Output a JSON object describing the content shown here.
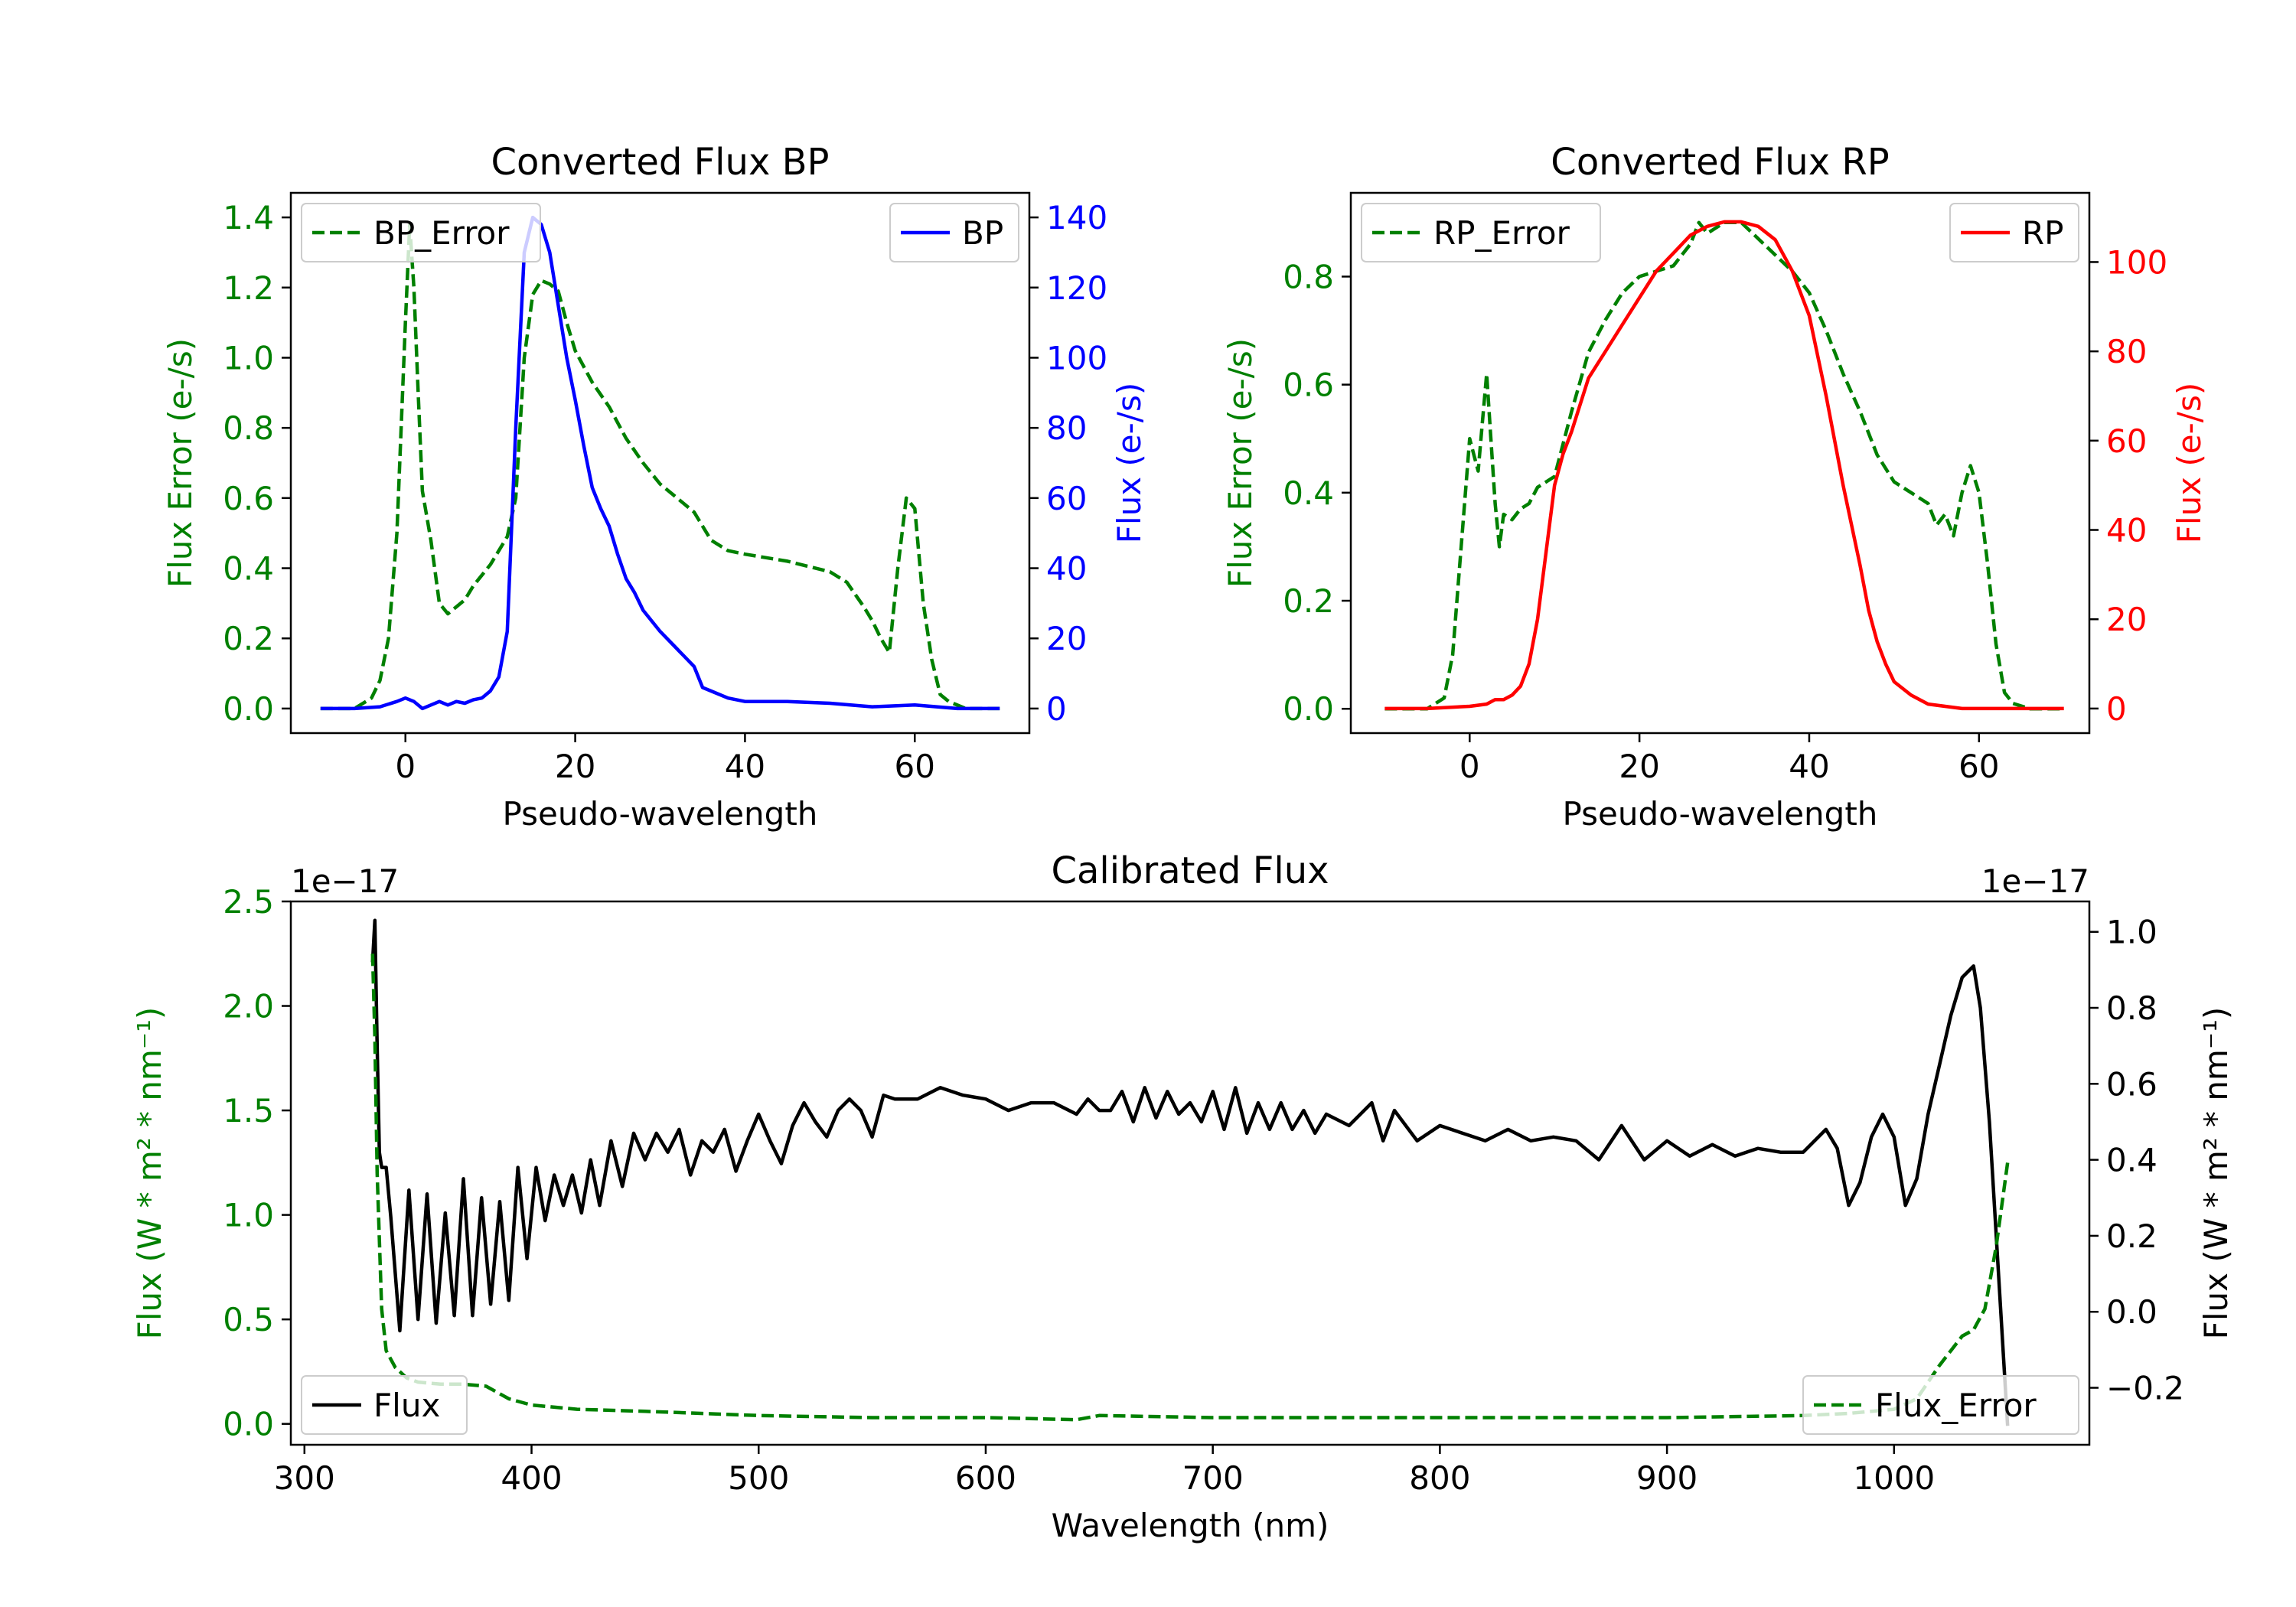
{
  "colors": {
    "green": "#008000",
    "blue": "#0000ff",
    "red": "#ff0000",
    "black": "#000000"
  },
  "chart_data": [
    {
      "id": "bp",
      "type": "line",
      "title": "Converted Flux BP",
      "xlabel": "Pseudo-wavelength",
      "ylabel_left": "Flux Error (e-/s)",
      "ylabel_right": "Flux (e-/s)",
      "xlim": [
        -13.5,
        73.5
      ],
      "ylim_left": [
        -0.07,
        1.47
      ],
      "ylim_right": [
        -7,
        147
      ],
      "xticks": [
        "0",
        "20",
        "40",
        "60"
      ],
      "yticks_left": [
        "0.0",
        "0.2",
        "0.4",
        "0.6",
        "0.8",
        "1.0",
        "1.2",
        "1.4"
      ],
      "yticks_right": [
        "0",
        "20",
        "40",
        "60",
        "80",
        "100",
        "120",
        "140"
      ],
      "legend_left": "BP_Error",
      "legend_right": "BP",
      "series": [
        {
          "name": "BP_Error",
          "axis": "left",
          "color": "#008000",
          "dashed": true,
          "x": [
            -10,
            -6,
            -4,
            -3,
            -2,
            -1,
            0,
            0.5,
            1,
            1.5,
            2,
            3,
            4,
            5,
            6,
            7,
            8,
            9,
            10,
            11,
            12,
            13,
            14,
            15,
            16,
            17,
            18,
            19,
            20,
            22,
            24,
            26,
            28,
            30,
            32,
            34,
            36,
            38,
            40,
            45,
            50,
            52,
            54,
            55,
            56,
            57,
            58,
            59,
            60,
            61,
            62,
            63,
            64,
            66,
            70
          ],
          "y": [
            0,
            0,
            0.03,
            0.08,
            0.2,
            0.5,
            1.1,
            1.38,
            1.2,
            0.9,
            0.62,
            0.48,
            0.3,
            0.27,
            0.29,
            0.31,
            0.35,
            0.38,
            0.41,
            0.45,
            0.49,
            0.6,
            1.0,
            1.18,
            1.22,
            1.21,
            1.19,
            1.1,
            1.02,
            0.93,
            0.86,
            0.77,
            0.7,
            0.64,
            0.6,
            0.56,
            0.48,
            0.45,
            0.44,
            0.42,
            0.39,
            0.36,
            0.29,
            0.25,
            0.2,
            0.16,
            0.4,
            0.6,
            0.57,
            0.3,
            0.14,
            0.04,
            0.02,
            0,
            0
          ]
        },
        {
          "name": "BP",
          "axis": "right",
          "color": "#0000ff",
          "dashed": false,
          "x": [
            -10,
            -6,
            -3,
            -1,
            0,
            1,
            2,
            3,
            4,
            5,
            6,
            7,
            8,
            9,
            10,
            11,
            12,
            13,
            14,
            15,
            16,
            17,
            18,
            19,
            20,
            21,
            22,
            23,
            24,
            25,
            26,
            27,
            28,
            30,
            32,
            34,
            35,
            36,
            38,
            40,
            45,
            50,
            55,
            60,
            65,
            70
          ],
          "y": [
            0,
            0,
            0.5,
            2,
            3,
            2,
            0,
            1,
            2,
            1,
            2,
            1.5,
            2.5,
            3,
            5,
            9,
            22,
            80,
            130,
            140,
            138,
            130,
            115,
            100,
            88,
            75,
            63,
            57,
            52,
            44,
            37,
            33,
            28,
            22,
            17,
            12,
            6,
            5,
            3,
            2,
            2,
            1.5,
            0.5,
            1,
            0,
            0
          ]
        }
      ]
    },
    {
      "id": "rp",
      "type": "line",
      "title": "Converted Flux RP",
      "xlabel": "Pseudo-wavelength",
      "ylabel_left": "Flux Error (e-/s)",
      "ylabel_right": "Flux (e-/s)",
      "xlim": [
        -14,
        73
      ],
      "ylim_left": [
        -0.045,
        0.955
      ],
      "ylim_right": [
        -5.5,
        115.5
      ],
      "xticks": [
        "0",
        "20",
        "40",
        "60"
      ],
      "yticks_left": [
        "0.0",
        "0.2",
        "0.4",
        "0.6",
        "0.8"
      ],
      "yticks_right": [
        "0",
        "20",
        "40",
        "60",
        "80",
        "100"
      ],
      "legend_left": "RP_Error",
      "legend_right": "RP",
      "series": [
        {
          "name": "RP_Error",
          "axis": "left",
          "color": "#008000",
          "dashed": true,
          "x": [
            -10,
            -5,
            -3,
            -2,
            -1,
            0,
            0.5,
            1,
            1.5,
            2,
            2.5,
            3,
            3.5,
            4,
            5,
            6,
            7,
            8,
            10,
            12,
            14,
            16,
            18,
            20,
            22,
            24,
            26,
            27,
            28,
            30,
            32,
            34,
            36,
            38,
            40,
            42,
            44,
            46,
            48,
            50,
            52,
            54,
            55,
            56,
            57,
            58,
            59,
            60,
            61,
            62,
            63,
            64,
            66,
            70
          ],
          "y": [
            0,
            0,
            0.02,
            0.1,
            0.3,
            0.5,
            0.47,
            0.44,
            0.53,
            0.62,
            0.5,
            0.38,
            0.3,
            0.36,
            0.35,
            0.37,
            0.38,
            0.41,
            0.43,
            0.55,
            0.66,
            0.72,
            0.77,
            0.8,
            0.81,
            0.82,
            0.86,
            0.9,
            0.88,
            0.9,
            0.9,
            0.87,
            0.84,
            0.81,
            0.77,
            0.7,
            0.62,
            0.55,
            0.47,
            0.42,
            0.4,
            0.38,
            0.34,
            0.36,
            0.32,
            0.4,
            0.45,
            0.4,
            0.27,
            0.12,
            0.03,
            0.01,
            0,
            0
          ]
        },
        {
          "name": "RP",
          "axis": "right",
          "color": "#ff0000",
          "dashed": false,
          "x": [
            -10,
            -5,
            0,
            2,
            3,
            4,
            5,
            6,
            7,
            8,
            9,
            10,
            11,
            12,
            13,
            14,
            16,
            18,
            20,
            22,
            24,
            26,
            28,
            30,
            32,
            34,
            36,
            38,
            40,
            42,
            44,
            46,
            47,
            48,
            49,
            50,
            52,
            54,
            56,
            58,
            60,
            65,
            70
          ],
          "y": [
            0,
            0,
            0.5,
            1,
            2,
            2,
            3,
            5,
            10,
            20,
            35,
            50,
            57,
            62,
            68,
            74,
            80,
            86,
            92,
            98,
            102,
            106,
            108,
            109,
            109,
            108,
            105,
            98,
            88,
            70,
            50,
            32,
            22,
            15,
            10,
            6,
            3,
            1,
            0.5,
            0,
            0,
            0,
            0
          ]
        }
      ]
    },
    {
      "id": "cal",
      "type": "line",
      "title": "Calibrated Flux",
      "xlabel": "Wavelength (nm)",
      "ylabel_left": "Flux (W * m² * nm⁻¹)",
      "ylabel_right": "Flux (W * m² * nm⁻¹)",
      "offset_left": "1e−17",
      "offset_right": "1e−17",
      "xlim": [
        294,
        1086
      ],
      "ylim_left": [
        -0.1,
        2.5
      ],
      "ylim_right": [
        -0.35,
        1.08
      ],
      "xticks": [
        "300",
        "400",
        "500",
        "600",
        "700",
        "800",
        "900",
        "1000"
      ],
      "yticks_left": [
        "0.0",
        "0.5",
        "1.0",
        "1.5",
        "2.0",
        "2.5"
      ],
      "yticks_right": [
        "−0.2",
        "0.0",
        "0.2",
        "0.4",
        "0.6",
        "0.8",
        "1.0"
      ],
      "legend_left": "Flux",
      "legend_right": "Flux_Error",
      "series": [
        {
          "name": "Flux",
          "axis": "right",
          "color": "#000000",
          "dashed": false,
          "x": [
            330,
            331,
            332,
            333,
            334,
            336,
            338,
            342,
            346,
            350,
            354,
            358,
            362,
            366,
            370,
            374,
            378,
            382,
            386,
            390,
            394,
            398,
            402,
            406,
            410,
            414,
            418,
            422,
            426,
            430,
            435,
            440,
            445,
            450,
            455,
            460,
            465,
            470,
            475,
            480,
            485,
            490,
            495,
            500,
            505,
            510,
            515,
            520,
            525,
            530,
            535,
            540,
            545,
            550,
            555,
            560,
            570,
            580,
            590,
            600,
            610,
            620,
            630,
            640,
            645,
            650,
            655,
            660,
            665,
            670,
            675,
            680,
            685,
            690,
            695,
            700,
            705,
            710,
            715,
            720,
            725,
            730,
            735,
            740,
            745,
            750,
            760,
            770,
            775,
            780,
            790,
            800,
            810,
            820,
            830,
            840,
            850,
            860,
            870,
            880,
            890,
            900,
            910,
            920,
            930,
            940,
            950,
            960,
            970,
            975,
            980,
            985,
            990,
            995,
            1000,
            1005,
            1010,
            1015,
            1020,
            1025,
            1030,
            1035,
            1038,
            1042,
            1046,
            1050
          ],
          "y": [
            0.92,
            1.03,
            0.7,
            0.42,
            0.38,
            0.38,
            0.25,
            -0.05,
            0.32,
            -0.02,
            0.31,
            -0.03,
            0.26,
            -0.01,
            0.35,
            -0.01,
            0.3,
            0.02,
            0.29,
            0.03,
            0.38,
            0.14,
            0.38,
            0.24,
            0.36,
            0.28,
            0.36,
            0.26,
            0.4,
            0.28,
            0.45,
            0.33,
            0.47,
            0.4,
            0.47,
            0.42,
            0.48,
            0.36,
            0.45,
            0.42,
            0.48,
            0.37,
            0.45,
            0.52,
            0.45,
            0.39,
            0.49,
            0.55,
            0.5,
            0.46,
            0.53,
            0.56,
            0.53,
            0.46,
            0.57,
            0.56,
            0.56,
            0.59,
            0.57,
            0.56,
            0.53,
            0.55,
            0.55,
            0.52,
            0.56,
            0.53,
            0.53,
            0.58,
            0.5,
            0.59,
            0.51,
            0.58,
            0.52,
            0.55,
            0.5,
            0.58,
            0.48,
            0.59,
            0.47,
            0.55,
            0.48,
            0.55,
            0.48,
            0.53,
            0.47,
            0.52,
            0.49,
            0.55,
            0.45,
            0.53,
            0.45,
            0.49,
            0.47,
            0.45,
            0.48,
            0.45,
            0.46,
            0.45,
            0.4,
            0.49,
            0.4,
            0.45,
            0.41,
            0.44,
            0.41,
            0.43,
            0.42,
            0.42,
            0.48,
            0.43,
            0.28,
            0.34,
            0.46,
            0.52,
            0.46,
            0.28,
            0.35,
            0.52,
            0.65,
            0.78,
            0.88,
            0.91,
            0.8,
            0.5,
            0.1,
            -0.3
          ]
        },
        {
          "name": "Flux_Error",
          "axis": "left",
          "color": "#008000",
          "dashed": true,
          "x": [
            330,
            331,
            332,
            334,
            336,
            340,
            345,
            350,
            360,
            370,
            380,
            390,
            400,
            420,
            450,
            500,
            550,
            600,
            640,
            650,
            700,
            800,
            900,
            960,
            980,
            1000,
            1010,
            1015,
            1020,
            1025,
            1030,
            1035,
            1040,
            1045,
            1050
          ],
          "y": [
            2.25,
            1.85,
            1.2,
            0.55,
            0.35,
            0.27,
            0.22,
            0.2,
            0.19,
            0.19,
            0.18,
            0.12,
            0.09,
            0.07,
            0.06,
            0.04,
            0.03,
            0.03,
            0.02,
            0.04,
            0.03,
            0.03,
            0.03,
            0.04,
            0.05,
            0.07,
            0.12,
            0.2,
            0.28,
            0.35,
            0.42,
            0.45,
            0.55,
            0.85,
            1.25
          ]
        }
      ]
    }
  ]
}
